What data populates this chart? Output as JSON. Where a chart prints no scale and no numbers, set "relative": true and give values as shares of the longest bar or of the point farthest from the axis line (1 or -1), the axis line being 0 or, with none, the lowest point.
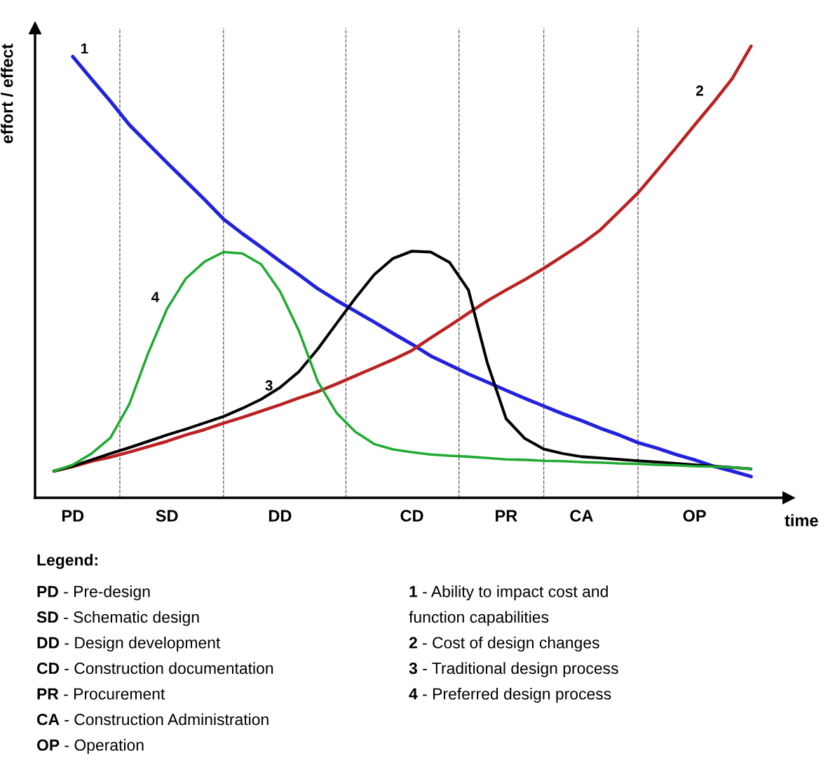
{
  "chart_data": {
    "type": "line",
    "relative": true,
    "ylabel": "effort / effect",
    "xlabel": "time",
    "categories": [
      null,
      null,
      "PD",
      null,
      null,
      null,
      null,
      "SD",
      null,
      null,
      null,
      null,
      null,
      "DD",
      null,
      null,
      null,
      null,
      null,
      null,
      "CD",
      null,
      null,
      null,
      null,
      "PR",
      null,
      null,
      null,
      "CA",
      null,
      null,
      null,
      null,
      null,
      "OP",
      null,
      null,
      null,
      null
    ],
    "series": [
      {
        "name": "1",
        "color": "#2222dd",
        "values": [
          null,
          null,
          0.977,
          0.927,
          0.878,
          0.826,
          0.784,
          0.742,
          0.701,
          0.66,
          0.617,
          0.585,
          0.555,
          0.524,
          0.494,
          0.463,
          0.437,
          0.413,
          0.389,
          0.364,
          0.34,
          0.314,
          0.294,
          0.274,
          0.256,
          0.238,
          0.22,
          0.203,
          0.186,
          0.171,
          0.154,
          0.139,
          0.122,
          0.11,
          0.096,
          0.084,
          0.07,
          0.059,
          0.047,
          null
        ]
      },
      {
        "name": "2",
        "color": "#bb2222",
        "values": [
          null,
          0.059,
          0.069,
          0.081,
          0.09,
          0.101,
          0.113,
          0.125,
          0.139,
          0.151,
          0.165,
          0.178,
          0.192,
          0.206,
          0.221,
          0.235,
          0.252,
          0.27,
          0.288,
          0.306,
          0.326,
          0.354,
          0.381,
          0.409,
          0.436,
          0.46,
          0.483,
          0.508,
          0.535,
          0.562,
          0.593,
          0.634,
          0.675,
          0.724,
          0.774,
          0.825,
          0.875,
          0.928,
          1.0,
          null
        ]
      },
      {
        "name": "3",
        "color": "#000000",
        "values": [
          null,
          0.059,
          0.07,
          0.084,
          0.098,
          0.111,
          0.125,
          0.139,
          0.152,
          0.166,
          0.18,
          0.198,
          0.218,
          0.244,
          0.279,
          0.329,
          0.386,
          0.442,
          0.494,
          0.53,
          0.546,
          0.544,
          0.521,
          0.46,
          0.299,
          0.175,
          0.131,
          0.108,
          0.098,
          0.091,
          0.088,
          0.085,
          0.082,
          0.079,
          0.076,
          0.073,
          0.07,
          0.067,
          0.064,
          null
        ]
      },
      {
        "name": "4",
        "color": "#22aa33",
        "values": [
          null,
          0.059,
          0.073,
          0.098,
          0.133,
          0.207,
          0.32,
          0.418,
          0.485,
          0.523,
          0.544,
          0.541,
          0.517,
          0.457,
          0.37,
          0.258,
          0.188,
          0.146,
          0.119,
          0.107,
          0.101,
          0.096,
          0.093,
          0.091,
          0.088,
          0.085,
          0.084,
          0.082,
          0.081,
          0.079,
          0.078,
          0.076,
          0.075,
          0.073,
          0.072,
          0.07,
          0.069,
          0.067,
          0.064,
          null
        ]
      }
    ],
    "annotations": [
      "Legend:",
      "PD - Pre-design",
      "SD - Schematic design",
      "DD - Design development",
      "CD - Construction documentation",
      "PR - Procurement",
      "CA - Construction Administration",
      "OP - Operation",
      "1 - Ability to impact cost and\nfunction capabilities",
      "2 - Cost of design changes",
      "3 - Traditional design process",
      "4 - Preferred design process"
    ],
    "legend": false,
    "grid": "x",
    "marker": "none",
    "line_style": "solid"
  }
}
